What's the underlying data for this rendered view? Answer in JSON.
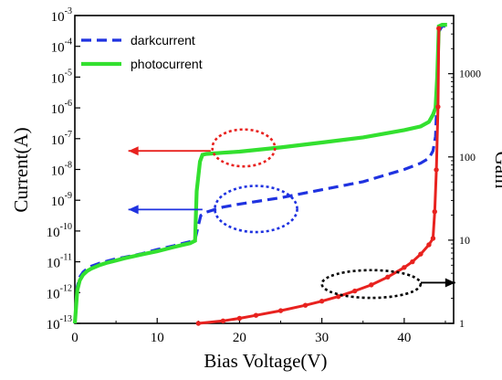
{
  "chart_data": {
    "type": "line",
    "xlabel": "Bias Voltage(V)",
    "ylabel": "Current(A)",
    "y2label": "Gain",
    "xlim": [
      0,
      46
    ],
    "ylim": [
      1e-13,
      0.001
    ],
    "y2lim": [
      1,
      5000
    ],
    "yscale": "log",
    "y2scale": "log",
    "x_ticks": [
      0,
      10,
      20,
      30,
      40
    ],
    "y_ticks": [
      {
        "base": "10",
        "exp": "-13",
        "value": 1e-13
      },
      {
        "base": "10",
        "exp": "-12",
        "value": 1e-12
      },
      {
        "base": "10",
        "exp": "-11",
        "value": 1e-11
      },
      {
        "base": "10",
        "exp": "-10",
        "value": 1e-10
      },
      {
        "base": "10",
        "exp": "-9",
        "value": 1e-09
      },
      {
        "base": "10",
        "exp": "-8",
        "value": 1e-08
      },
      {
        "base": "10",
        "exp": "-7",
        "value": 1e-07
      },
      {
        "base": "10",
        "exp": "-6",
        "value": 1e-06
      },
      {
        "base": "10",
        "exp": "-5",
        "value": 1e-05
      },
      {
        "base": "10",
        "exp": "-4",
        "value": 0.0001
      },
      {
        "base": "10",
        "exp": "-3",
        "value": 0.001
      }
    ],
    "y2_ticks": [
      {
        "label": "1",
        "value": 1
      },
      {
        "label": "10",
        "value": 10
      },
      {
        "label": "100",
        "value": 100
      },
      {
        "label": "1000",
        "value": 1000
      }
    ],
    "grid": false,
    "legend_position": "top-left",
    "series": [
      {
        "name": "darkcurrent",
        "axis": "left",
        "color": "#1f32e0",
        "style": "dashed",
        "x": [
          0,
          0.3,
          0.6,
          1,
          1.5,
          2,
          3,
          4,
          5,
          6,
          8,
          10,
          12,
          13,
          14,
          14.6,
          15,
          15.3,
          15.6,
          16,
          17,
          18,
          20,
          25,
          30,
          35,
          40,
          42,
          43,
          43.5,
          43.8,
          44,
          44.2,
          44.6,
          45.2
        ],
        "y": [
          1e-13,
          1.6e-12,
          3.2e-12,
          4.6e-12,
          6e-12,
          7.2e-12,
          9e-12,
          1.06e-11,
          1.25e-11,
          1.4e-11,
          1.8e-11,
          2.5e-11,
          3.3e-11,
          3.9e-11,
          4.5e-11,
          5.2e-11,
          1.5e-10,
          3.2e-10,
          3.6e-10,
          4.1e-10,
          5e-10,
          6e-10,
          7.5e-10,
          1.2e-09,
          2.2e-09,
          4e-09,
          1e-08,
          1.6e-08,
          2.3e-08,
          4e-08,
          1.2e-07,
          3e-06,
          0.0003,
          0.00045,
          0.00045
        ]
      },
      {
        "name": "photocurrent",
        "axis": "left",
        "color": "#33e02f",
        "style": "solid",
        "x": [
          0,
          0.3,
          0.6,
          1,
          1.5,
          2,
          3,
          4,
          5,
          6,
          8,
          10,
          12,
          13,
          14,
          14.6,
          14.8,
          15.2,
          15.5,
          16,
          18,
          20,
          25,
          30,
          35,
          40,
          42,
          43,
          43.5,
          43.8,
          44,
          44.2,
          44.6,
          45.2
        ],
        "y": [
          1e-13,
          1.2e-12,
          2.5e-12,
          3.8e-12,
          5e-12,
          6e-12,
          7.8e-12,
          9.5e-12,
          1.1e-11,
          1.3e-11,
          1.7e-11,
          2.2e-11,
          3e-11,
          3.5e-11,
          4e-11,
          4.8e-11,
          2e-09,
          1.8e-08,
          3e-08,
          3.2e-08,
          3.5e-08,
          3.8e-08,
          5.2e-08,
          7.5e-08,
          1.1e-07,
          1.9e-07,
          2.5e-07,
          3.5e-07,
          6e-07,
          1e-06,
          1e-05,
          0.00045,
          0.0005,
          0.0005
        ]
      },
      {
        "name": "",
        "axis": "right",
        "color": "#e8221f",
        "style": "markers",
        "x": [
          15,
          18,
          20,
          22,
          25,
          28,
          30,
          32,
          34,
          36,
          38,
          40,
          41,
          42,
          43,
          43.5,
          43.7,
          43.9,
          44.1,
          44.2
        ],
        "y": [
          1,
          1.07,
          1.15,
          1.25,
          1.42,
          1.65,
          1.85,
          2.1,
          2.45,
          2.9,
          3.6,
          4.7,
          5.5,
          6.8,
          8.8,
          10.5,
          22,
          70,
          400,
          3500
        ]
      }
    ],
    "annotations": [
      {
        "type": "ellipse",
        "color": "#e8221f",
        "style": "dotted",
        "cx": 20.5,
        "cy": 5e-08,
        "rx": 3.8,
        "ry_decades": 0.6,
        "axis": "left"
      },
      {
        "type": "arrow",
        "color": "#e8221f",
        "from": [
          16.5,
          4e-08
        ],
        "to": [
          6.5,
          4e-08
        ],
        "axis": "left"
      },
      {
        "type": "ellipse",
        "color": "#1f32e0",
        "style": "dotted",
        "cx": 22,
        "cy": 5.2e-10,
        "rx": 5,
        "ry_decades": 0.75,
        "axis": "left"
      },
      {
        "type": "arrow",
        "color": "#1f32e0",
        "from": [
          15.5,
          5e-10
        ],
        "to": [
          6.5,
          5e-10
        ],
        "axis": "left"
      },
      {
        "type": "ellipse",
        "color": "#000000",
        "style": "dotted",
        "cx": 36,
        "cy": 1.9e-12,
        "rx": 6,
        "ry_decades": 0.45,
        "axis": "left"
      },
      {
        "type": "arrow",
        "color": "#000000",
        "from": [
          42,
          2.1e-12
        ],
        "to": [
          46.2,
          2.1e-12
        ],
        "axis": "left"
      }
    ]
  }
}
